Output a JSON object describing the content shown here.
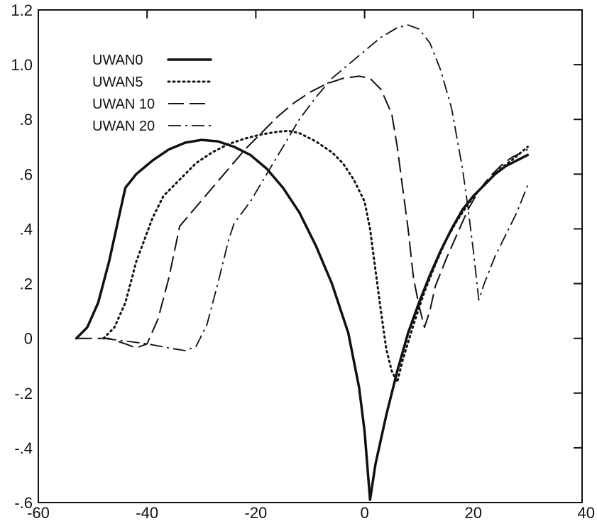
{
  "chart_data": {
    "type": "line",
    "title": "",
    "xlabel": "",
    "ylabel": "",
    "xlim": [
      -60,
      40
    ],
    "ylim": [
      -0.6,
      1.2
    ],
    "grid": false,
    "legend_position": "top-left",
    "x_ticks": [
      -60,
      -40,
      -20,
      0,
      20,
      40
    ],
    "x_tick_labels": [
      "-60",
      "-40",
      "-20",
      "0",
      "20",
      "40"
    ],
    "y_ticks": [
      -0.6,
      -0.4,
      -0.2,
      0,
      0.2,
      0.4,
      0.6,
      0.8,
      1.0,
      1.2
    ],
    "y_tick_labels": [
      "-.6",
      "-.4",
      "-.2",
      "0",
      ".2",
      ".4",
      ".6",
      ".8",
      "1.0",
      "1.2"
    ],
    "series": [
      {
        "name": "UWAN0",
        "style": "solid",
        "points": [
          [
            -53,
            0
          ],
          [
            -51,
            0.04
          ],
          [
            -49,
            0.13
          ],
          [
            -47,
            0.28
          ],
          [
            -45,
            0.46
          ],
          [
            -44,
            0.55
          ],
          [
            -42,
            0.6
          ],
          [
            -39,
            0.65
          ],
          [
            -36,
            0.69
          ],
          [
            -33,
            0.715
          ],
          [
            -30,
            0.725
          ],
          [
            -27,
            0.72
          ],
          [
            -24,
            0.7
          ],
          [
            -21,
            0.67
          ],
          [
            -18,
            0.62
          ],
          [
            -15,
            0.55
          ],
          [
            -12,
            0.46
          ],
          [
            -9,
            0.34
          ],
          [
            -6,
            0.2
          ],
          [
            -3,
            0.02
          ],
          [
            -1,
            -0.18
          ],
          [
            0,
            -0.34
          ],
          [
            1,
            -0.59
          ],
          [
            2,
            -0.46
          ],
          [
            4,
            -0.28
          ],
          [
            6,
            -0.12
          ],
          [
            8,
            0.02
          ],
          [
            10,
            0.13
          ],
          [
            12,
            0.23
          ],
          [
            14,
            0.32
          ],
          [
            16,
            0.4
          ],
          [
            18,
            0.47
          ],
          [
            20,
            0.52
          ],
          [
            22,
            0.56
          ],
          [
            24,
            0.6
          ],
          [
            26,
            0.63
          ],
          [
            28,
            0.65
          ],
          [
            30,
            0.67
          ]
        ]
      },
      {
        "name": "UWAN5",
        "style": "dotted",
        "points": [
          [
            -48,
            0
          ],
          [
            -46,
            0.04
          ],
          [
            -44,
            0.13
          ],
          [
            -42,
            0.28
          ],
          [
            -39,
            0.44
          ],
          [
            -37,
            0.52
          ],
          [
            -34,
            0.58
          ],
          [
            -31,
            0.64
          ],
          [
            -28,
            0.68
          ],
          [
            -25,
            0.71
          ],
          [
            -22,
            0.73
          ],
          [
            -19,
            0.745
          ],
          [
            -16,
            0.755
          ],
          [
            -14,
            0.758
          ],
          [
            -12,
            0.75
          ],
          [
            -9,
            0.72
          ],
          [
            -6,
            0.68
          ],
          [
            -4,
            0.64
          ],
          [
            -2,
            0.58
          ],
          [
            0,
            0.5
          ],
          [
            1,
            0.4
          ],
          [
            2,
            0.25
          ],
          [
            3,
            0.1
          ],
          [
            4,
            -0.04
          ],
          [
            5,
            -0.12
          ],
          [
            6,
            -0.16
          ],
          [
            7,
            -0.08
          ],
          [
            9,
            0.05
          ],
          [
            11,
            0.17
          ],
          [
            13,
            0.27
          ],
          [
            15,
            0.36
          ],
          [
            17,
            0.43
          ],
          [
            19,
            0.49
          ],
          [
            21,
            0.54
          ],
          [
            23,
            0.58
          ],
          [
            25,
            0.62
          ],
          [
            27,
            0.65
          ],
          [
            30,
            0.7
          ]
        ]
      },
      {
        "name": "UWAN 10",
        "style": "dashed",
        "points": [
          [
            -53,
            0
          ],
          [
            -47,
            0
          ],
          [
            -44,
            -0.02
          ],
          [
            -42,
            -0.035
          ],
          [
            -40,
            -0.02
          ],
          [
            -38,
            0.07
          ],
          [
            -36,
            0.22
          ],
          [
            -34,
            0.41
          ],
          [
            -31,
            0.48
          ],
          [
            -28,
            0.55
          ],
          [
            -25,
            0.62
          ],
          [
            -22,
            0.69
          ],
          [
            -19,
            0.75
          ],
          [
            -16,
            0.81
          ],
          [
            -13,
            0.86
          ],
          [
            -10,
            0.9
          ],
          [
            -7,
            0.93
          ],
          [
            -4,
            0.95
          ],
          [
            -1,
            0.958
          ],
          [
            1,
            0.95
          ],
          [
            3,
            0.91
          ],
          [
            5,
            0.82
          ],
          [
            6,
            0.7
          ],
          [
            7,
            0.55
          ],
          [
            8,
            0.4
          ],
          [
            9,
            0.22
          ],
          [
            10,
            0.12
          ],
          [
            11,
            0.04
          ],
          [
            12,
            0.1
          ],
          [
            13,
            0.19
          ],
          [
            15,
            0.29
          ],
          [
            17,
            0.38
          ],
          [
            19,
            0.47
          ],
          [
            21,
            0.54
          ],
          [
            23,
            0.59
          ],
          [
            25,
            0.63
          ],
          [
            27,
            0.66
          ],
          [
            30,
            0.69
          ]
        ]
      },
      {
        "name": "UWAN 20",
        "style": "dash-dot",
        "points": [
          [
            -48,
            0
          ],
          [
            -44,
            -0.01
          ],
          [
            -40,
            -0.02
          ],
          [
            -36,
            -0.035
          ],
          [
            -33,
            -0.045
          ],
          [
            -31,
            -0.03
          ],
          [
            -29,
            0.05
          ],
          [
            -27,
            0.2
          ],
          [
            -25,
            0.36
          ],
          [
            -24,
            0.42
          ],
          [
            -21,
            0.5
          ],
          [
            -18,
            0.6
          ],
          [
            -15,
            0.7
          ],
          [
            -12,
            0.8
          ],
          [
            -9,
            0.88
          ],
          [
            -6,
            0.95
          ],
          [
            -3,
            1.0
          ],
          [
            0,
            1.05
          ],
          [
            3,
            1.1
          ],
          [
            6,
            1.135
          ],
          [
            8,
            1.145
          ],
          [
            10,
            1.13
          ],
          [
            12,
            1.08
          ],
          [
            14,
            0.98
          ],
          [
            16,
            0.84
          ],
          [
            18,
            0.62
          ],
          [
            19,
            0.48
          ],
          [
            20,
            0.32
          ],
          [
            21,
            0.14
          ],
          [
            22,
            0.2
          ],
          [
            24,
            0.3
          ],
          [
            26,
            0.38
          ],
          [
            28,
            0.46
          ],
          [
            30,
            0.56
          ]
        ]
      }
    ]
  }
}
